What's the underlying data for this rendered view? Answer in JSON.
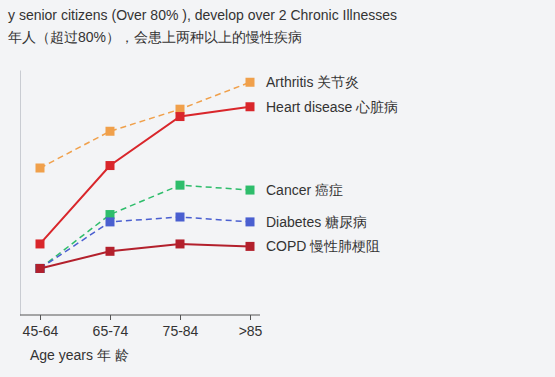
{
  "chart_data": {
    "type": "line",
    "title": "y senior citizens (Over 80% ), develop over 2 Chronic Illnesses",
    "subtitle": "年人（超过80%），会患上两种以上的慢性疾病",
    "x_label": "Age years 年 龄",
    "categories": [
      "45-64",
      "65-74",
      "75-84",
      ">85"
    ],
    "ylim": [
      0,
      100
    ],
    "tick_labels": "x",
    "grid": false,
    "series": [
      {
        "name": "Arthritis 关节炎",
        "color": "#f0a04b",
        "line_style": "dashed",
        "marker": "square",
        "values": [
          60,
          75,
          84,
          95
        ]
      },
      {
        "name": "Heart disease 心脏病",
        "color": "#d9262b",
        "line_style": "solid",
        "marker": "square",
        "values": [
          29,
          61,
          81,
          85
        ]
      },
      {
        "name": "Cancer 癌症",
        "color": "#2ebd6b",
        "line_style": "dashed",
        "marker": "square",
        "values": [
          19,
          41,
          53,
          51
        ]
      },
      {
        "name": "Diabetes 糖尿病",
        "color": "#4a5fd0",
        "line_style": "dashed",
        "marker": "square",
        "values": [
          19,
          38,
          40,
          38
        ]
      },
      {
        "name": "COPD 慢性肺梗阻",
        "color": "#b3202c",
        "line_style": "solid",
        "marker": "square",
        "values": [
          19,
          26,
          29,
          28
        ]
      }
    ]
  }
}
